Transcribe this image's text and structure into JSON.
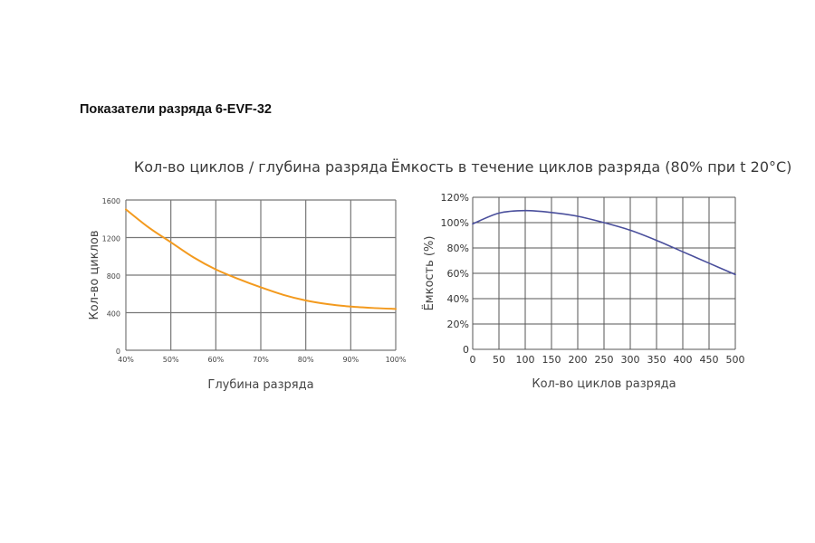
{
  "page": {
    "heading": "Показатели разряда 6-EVF-32"
  },
  "chart_data": [
    {
      "type": "line",
      "title": "Кол-во циклов / глубина разряда",
      "xlabel": "Глубина разряда",
      "ylabel": "Кол-во циклов",
      "x_tick_labels": [
        "40%",
        "50%",
        "60%",
        "70%",
        "80%",
        "90%",
        "100%"
      ],
      "y_tick_labels": [
        "0",
        "400",
        "800",
        "1200",
        "1600"
      ],
      "xlim": [
        40,
        100
      ],
      "ylim": [
        0,
        1600
      ],
      "grid": true,
      "series": [
        {
          "color": "#f39a1e",
          "x": [
            40,
            45,
            50,
            55,
            60,
            65,
            70,
            75,
            80,
            85,
            90,
            95,
            100
          ],
          "y": [
            1500,
            1310,
            1150,
            990,
            860,
            760,
            670,
            590,
            530,
            490,
            465,
            450,
            440
          ]
        }
      ]
    },
    {
      "type": "line",
      "title": "Ёмкость в течение циклов разряда (80% при t 20°C)",
      "xlabel": "Кол-во циклов разряда",
      "ylabel": "Ёмкость (%)",
      "x_tick_labels": [
        "0",
        "50",
        "100",
        "150",
        "200",
        "250",
        "300",
        "350",
        "400",
        "450",
        "500"
      ],
      "y_tick_labels": [
        "0",
        "20%",
        "40%",
        "60%",
        "80%",
        "100%",
        "120%"
      ],
      "xlim": [
        0,
        500
      ],
      "ylim": [
        0,
        120
      ],
      "grid": true,
      "series": [
        {
          "color": "#4a4f9c",
          "x": [
            0,
            50,
            100,
            150,
            200,
            250,
            300,
            350,
            400,
            450,
            500
          ],
          "y": [
            99,
            107.5,
            109.5,
            108,
            105,
            100,
            94,
            86,
            77,
            68,
            59
          ]
        }
      ]
    }
  ]
}
